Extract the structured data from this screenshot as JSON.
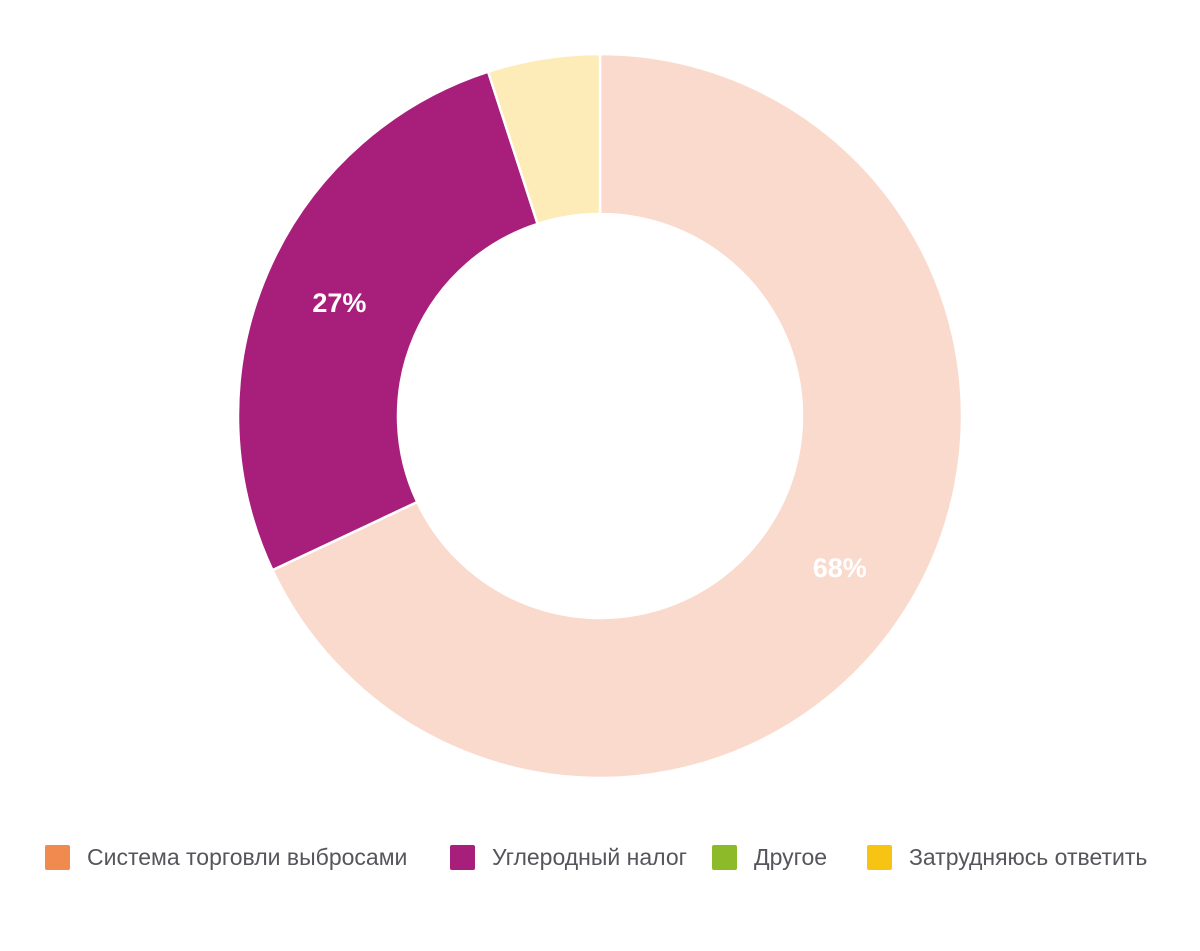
{
  "page": {
    "background_color": "#FFFFFF"
  },
  "chart_data": {
    "type": "pie",
    "subtype": "donut",
    "title": "",
    "unit": "%",
    "total": 100,
    "start_angle_deg": 0,
    "direction": "clockwise",
    "legend_position": "bottom",
    "grid": false,
    "data_label_color": "#FFFFFF",
    "legend_text_color": "#55565B",
    "series": [
      {
        "category": "Система торговли выбросами",
        "value": 68,
        "data_label": "68%",
        "slice_color": "#FADACD",
        "legend_color": "#F08A4E"
      },
      {
        "category": "Углеродный налог",
        "value": 27,
        "data_label": "27%",
        "slice_color": "#A71F7A",
        "legend_color": "#A71F7A"
      },
      {
        "category": "Другое",
        "value": 0,
        "data_label": "",
        "slice_color": "#8CBA29",
        "legend_color": "#8CBA29"
      },
      {
        "category": "Затрудняюсь ответить",
        "value": 5,
        "data_label": "",
        "slice_color": "#FDECB8",
        "legend_color": "#F7C413"
      }
    ]
  }
}
